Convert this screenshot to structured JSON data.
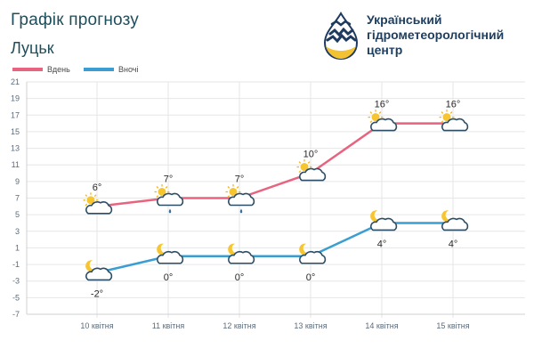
{
  "header": {
    "title": "Графік прогнозу",
    "city": "Луцьк"
  },
  "logo": {
    "line1": "Український",
    "line2": "гідрометеорологічний",
    "line3": "центр",
    "colors": {
      "drop_top": "#1e3a5f",
      "drop_bottom": "#f2c232",
      "text": "#1f3f60"
    }
  },
  "chart_data": {
    "type": "line",
    "categories": [
      "10 квітня",
      "11 квітня",
      "12 квітня",
      "13 квітня",
      "14 квітня",
      "15 квітня"
    ],
    "series": [
      {
        "name": "Вдень",
        "color": "#e8637f",
        "values": [
          6,
          7,
          7,
          10,
          16,
          16
        ],
        "labels": [
          "6°",
          "7°",
          "7°",
          "10°",
          "16°",
          "16°"
        ],
        "icons": [
          "sun-cloud",
          "sun-cloud-rain",
          "sun-cloud-rain",
          "sun-cloud",
          "sun-cloud",
          "sun-cloud"
        ]
      },
      {
        "name": "Вночі",
        "color": "#3a9ed2",
        "values": [
          -2,
          0,
          0,
          0,
          4,
          4
        ],
        "labels": [
          "-2°",
          "0°",
          "0°",
          "0°",
          "4°",
          "4°"
        ],
        "icons": [
          "moon-cloud",
          "moon-cloud",
          "moon-cloud",
          "moon-cloud",
          "moon-cloud",
          "moon-cloud"
        ]
      }
    ],
    "y_ticks": [
      "21",
      "19",
      "17",
      "15",
      "13",
      "11",
      "9",
      "7",
      "5",
      "3",
      "1",
      "-1",
      "-3",
      "-5",
      "-7"
    ],
    "ylim": [
      -7,
      21
    ],
    "grid": true,
    "legend": "top-left"
  }
}
